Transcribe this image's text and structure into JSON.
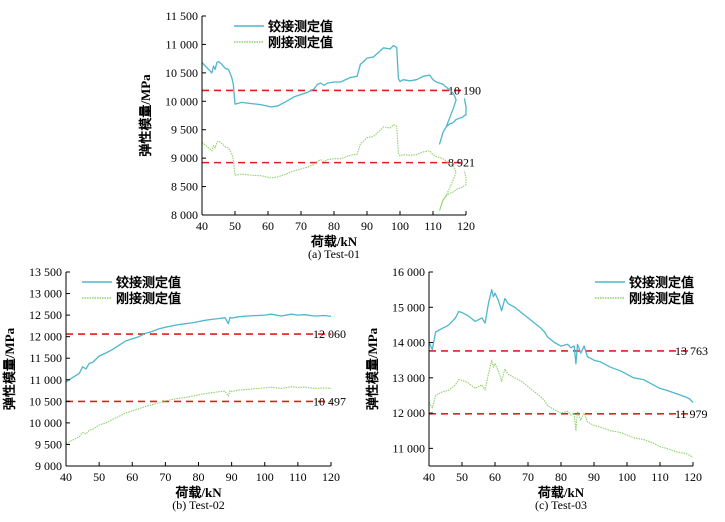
{
  "colors": {
    "hinged": "#4db8cc",
    "rigid": "#8fd16a",
    "reference": "#e02020",
    "axis": "#000000"
  },
  "chart_data": [
    {
      "type": "line",
      "caption": "(a) Test-01",
      "xlabel": "荷载/kN",
      "ylabel": "弹性模量/MPa",
      "xlim": [
        40,
        120
      ],
      "ylim": [
        8000,
        11500
      ],
      "xticks": [
        "40",
        "50",
        "60",
        "70",
        "80",
        "90",
        "100",
        "110",
        "120"
      ],
      "yticks": [
        "8 000",
        "8 500",
        "9 000",
        "9 500",
        "10 000",
        "10 500",
        "11 000",
        "11 500"
      ],
      "legend": "top-center",
      "series": [
        {
          "name": "铰接测定值",
          "style": "solid",
          "color": "#4db8cc",
          "x": [
            40,
            41,
            42,
            43,
            43.5,
            44,
            44.5,
            45,
            46,
            47,
            48,
            49,
            49.5,
            50,
            52,
            55,
            58,
            61,
            63,
            65,
            68,
            70,
            72,
            74,
            75,
            76,
            77,
            78,
            80,
            82,
            85,
            87,
            88,
            89,
            90,
            92,
            95,
            97,
            98,
            99,
            99.5,
            100,
            101,
            103,
            105,
            107,
            109,
            110,
            111,
            112,
            113,
            114,
            115,
            116,
            116.5,
            117,
            116,
            115,
            114,
            113,
            112,
            112.5,
            113,
            114,
            115,
            116,
            117,
            118,
            119,
            119.5,
            120,
            120,
            119.5
          ],
          "y": [
            10680,
            10620,
            10560,
            10500,
            10620,
            10560,
            10680,
            10700,
            10650,
            10580,
            10560,
            10420,
            10300,
            9950,
            9980,
            9960,
            9940,
            9900,
            9920,
            9980,
            10080,
            10120,
            10160,
            10220,
            10300,
            10320,
            10280,
            10320,
            10340,
            10340,
            10420,
            10440,
            10650,
            10700,
            10760,
            10780,
            10940,
            10920,
            10980,
            10950,
            10400,
            10350,
            10380,
            10360,
            10380,
            10440,
            10460,
            10380,
            10340,
            10320,
            10300,
            10250,
            10200,
            10150,
            10100,
            10020,
            9850,
            9700,
            9550,
            9450,
            9250,
            9350,
            9450,
            9550,
            9600,
            9620,
            9680,
            9700,
            9720,
            9750,
            9760,
            9900,
            10050
          ]
        },
        {
          "name": "刚接测定值",
          "style": "dotted",
          "color": "#8fd16a",
          "x": [
            40,
            41,
            42,
            43,
            43.5,
            44,
            44.5,
            45,
            46,
            47,
            48,
            49,
            49.5,
            50,
            52,
            55,
            58,
            61,
            63,
            65,
            68,
            70,
            72,
            74,
            75,
            76,
            77,
            78,
            80,
            82,
            85,
            87,
            88,
            89,
            90,
            92,
            95,
            97,
            98,
            99,
            99.5,
            100,
            101,
            103,
            105,
            107,
            109,
            110,
            111,
            112,
            113,
            114,
            115,
            116,
            116.5,
            117,
            116,
            115,
            114,
            113,
            112,
            112.5,
            113,
            114,
            115,
            116,
            117,
            118,
            119,
            119.5,
            120,
            120,
            119.5
          ],
          "y": [
            9280,
            9230,
            9180,
            9130,
            9220,
            9180,
            9280,
            9300,
            9260,
            9200,
            9180,
            9080,
            8980,
            8700,
            8720,
            8700,
            8690,
            8650,
            8670,
            8710,
            8780,
            8810,
            8840,
            8890,
            8950,
            8970,
            8940,
            8970,
            8990,
            8990,
            9050,
            9070,
            9250,
            9300,
            9360,
            9380,
            9550,
            9530,
            9590,
            9560,
            9080,
            9040,
            9060,
            9050,
            9060,
            9110,
            9130,
            9060,
            9030,
            9010,
            8990,
            8950,
            8900,
            8860,
            8820,
            8750,
            8600,
            8470,
            8340,
            8260,
            8080,
            8170,
            8260,
            8340,
            8380,
            8400,
            8450,
            8470,
            8490,
            8520,
            8530,
            8650,
            8780
          ]
        }
      ],
      "reference_lines": [
        {
          "value": 10190,
          "label": "10 190"
        },
        {
          "value": 8921,
          "label": "8 921"
        }
      ]
    },
    {
      "type": "line",
      "caption": "(b) Test-02",
      "xlabel": "荷载/kN",
      "ylabel": "弹性模量/MPa",
      "xlim": [
        40,
        120
      ],
      "ylim": [
        9000,
        13500
      ],
      "xticks": [
        "40",
        "50",
        "60",
        "70",
        "80",
        "90",
        "100",
        "110",
        "120"
      ],
      "yticks": [
        "9 000",
        "9 500",
        "10 000",
        "10 500",
        "11 000",
        "11 500",
        "12 000",
        "12 500",
        "13 000",
        "13 500"
      ],
      "legend": "top-left",
      "series": [
        {
          "name": "铰接测定值",
          "style": "solid",
          "color": "#4db8cc",
          "x": [
            40,
            42,
            44,
            45,
            46,
            47,
            48,
            50,
            52,
            54,
            56,
            58,
            60,
            62,
            64,
            66,
            68,
            70,
            72,
            74,
            76,
            78,
            80,
            82,
            84,
            86,
            88,
            89,
            89.5,
            90,
            92,
            95,
            98,
            100,
            102,
            105,
            108,
            110,
            112,
            115,
            118,
            120
          ],
          "y": [
            10950,
            11050,
            11150,
            11300,
            11250,
            11380,
            11400,
            11550,
            11620,
            11700,
            11800,
            11900,
            11950,
            12000,
            12080,
            12120,
            12180,
            12220,
            12250,
            12280,
            12300,
            12320,
            12350,
            12380,
            12400,
            12420,
            12440,
            12300,
            12450,
            12430,
            12460,
            12480,
            12490,
            12500,
            12520,
            12480,
            12520,
            12500,
            12510,
            12480,
            12490,
            12470
          ]
        },
        {
          "name": "刚接测定值",
          "style": "dotted",
          "color": "#8fd16a",
          "x": [
            40,
            42,
            44,
            45,
            46,
            47,
            48,
            50,
            52,
            54,
            56,
            58,
            60,
            62,
            64,
            66,
            68,
            70,
            72,
            74,
            76,
            78,
            80,
            82,
            84,
            86,
            88,
            89,
            89.5,
            90,
            92,
            95,
            98,
            100,
            102,
            105,
            108,
            110,
            112,
            115,
            118,
            120
          ],
          "y": [
            9520,
            9600,
            9680,
            9780,
            9740,
            9830,
            9850,
            9950,
            10000,
            10080,
            10150,
            10230,
            10280,
            10330,
            10380,
            10420,
            10470,
            10510,
            10540,
            10570,
            10590,
            10620,
            10650,
            10680,
            10700,
            10720,
            10740,
            10620,
            10750,
            10730,
            10760,
            10780,
            10800,
            10810,
            10830,
            10800,
            10840,
            10820,
            10830,
            10800,
            10810,
            10800
          ]
        }
      ],
      "reference_lines": [
        {
          "value": 12060,
          "label": "12 060"
        },
        {
          "value": 10497,
          "label": "10 497"
        }
      ]
    },
    {
      "type": "line",
      "caption": "(c) Test-03",
      "xlabel": "荷载/kN",
      "ylabel": "弹性模量/MPa",
      "xlim": [
        40,
        120
      ],
      "ylim": [
        10500,
        16000
      ],
      "xticks": [
        "40",
        "50",
        "60",
        "70",
        "80",
        "90",
        "100",
        "110",
        "120"
      ],
      "yticks": [
        "11 000",
        "12 000",
        "13 000",
        "14 000",
        "15 000",
        "16 000"
      ],
      "legend": "top-right",
      "series": [
        {
          "name": "铰接测定值",
          "style": "solid",
          "color": "#4db8cc",
          "x": [
            40,
            41,
            42,
            44,
            46,
            48,
            49,
            50,
            52,
            54,
            56,
            57,
            58,
            59,
            59.5,
            60,
            61,
            62,
            63,
            64,
            66,
            68,
            70,
            72,
            74,
            75,
            76,
            78,
            80,
            82,
            83,
            84,
            84.5,
            85,
            86,
            87,
            88,
            90,
            92,
            95,
            98,
            100,
            102,
            105,
            108,
            110,
            112,
            115,
            118,
            119,
            120
          ],
          "y": [
            14000,
            13800,
            14300,
            14400,
            14500,
            14700,
            14880,
            14850,
            14750,
            14600,
            14700,
            14550,
            15100,
            15500,
            15300,
            15400,
            15200,
            14900,
            15250,
            15100,
            15000,
            14850,
            14700,
            14550,
            14400,
            14300,
            14150,
            14000,
            13900,
            13950,
            13850,
            13900,
            13400,
            13950,
            13700,
            13900,
            13600,
            13500,
            13450,
            13300,
            13200,
            13100,
            13000,
            12950,
            12800,
            12700,
            12650,
            12550,
            12450,
            12400,
            12300
          ]
        },
        {
          "name": "刚接测定值",
          "style": "dotted",
          "color": "#8fd16a",
          "x": [
            40,
            41,
            42,
            44,
            46,
            48,
            49,
            50,
            52,
            54,
            56,
            57,
            58,
            59,
            59.5,
            60,
            61,
            62,
            63,
            64,
            66,
            68,
            70,
            72,
            74,
            75,
            76,
            78,
            80,
            82,
            83,
            84,
            84.5,
            85,
            86,
            87,
            88,
            90,
            92,
            95,
            98,
            100,
            102,
            105,
            108,
            110,
            112,
            115,
            118,
            119,
            120
          ],
          "y": [
            12300,
            12150,
            12500,
            12600,
            12650,
            12800,
            12950,
            12930,
            12850,
            12700,
            12800,
            12650,
            13100,
            13500,
            13300,
            13400,
            13200,
            12900,
            13250,
            13100,
            13000,
            12900,
            12750,
            12600,
            12450,
            12350,
            12200,
            12100,
            12000,
            12050,
            11950,
            12000,
            11500,
            12050,
            11800,
            12000,
            11750,
            11650,
            11600,
            11500,
            11450,
            11380,
            11300,
            11250,
            11150,
            11050,
            11000,
            10900,
            10850,
            10800,
            10750
          ]
        }
      ],
      "reference_lines": [
        {
          "value": 13763,
          "label": "13 763"
        },
        {
          "value": 11979,
          "label": "11 979"
        }
      ]
    }
  ]
}
